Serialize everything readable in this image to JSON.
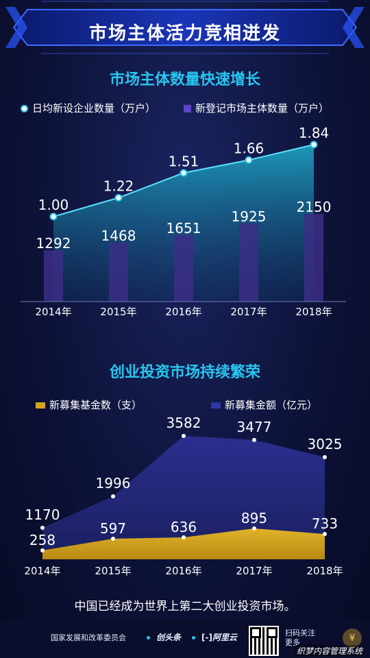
{
  "header": {
    "title": "市场主体活力竞相迸发"
  },
  "chart_data": [
    {
      "type": "bar",
      "title": "市场主体数量快速增长",
      "categories": [
        "2014年",
        "2015年",
        "2016年",
        "2017年",
        "2018年"
      ],
      "series": [
        {
          "name": "日均新设企业数量（万户）",
          "kind": "area",
          "values": [
            1.0,
            1.22,
            1.51,
            1.66,
            1.84
          ],
          "labels": [
            "1.00",
            "1.22",
            "1.51",
            "1.66",
            "1.84"
          ]
        },
        {
          "name": "新登记市场主体数量（万户）",
          "kind": "bar",
          "values": [
            1292,
            1468,
            1651,
            1925,
            2150
          ],
          "labels": [
            "1292",
            "1468",
            "1651",
            "1925",
            "2150"
          ]
        }
      ],
      "colors": {
        "area": "#1d9fbf",
        "bar": "#3b2e86",
        "marker": "#27c6f0"
      }
    },
    {
      "type": "area",
      "title": "创业投资市场持续繁荣",
      "categories": [
        "2014年",
        "2015年",
        "2016年",
        "2017年",
        "2018年"
      ],
      "series": [
        {
          "name": "新募集基金数（支）",
          "values": [
            258,
            597,
            636,
            895,
            733
          ],
          "labels": [
            "258",
            "597",
            "636",
            "895",
            "733"
          ]
        },
        {
          "name": "新募集金额（亿元）",
          "values": [
            1170,
            1996,
            3582,
            3477,
            3025
          ],
          "labels": [
            "1170",
            "1996",
            "3582",
            "3477",
            "3025"
          ]
        }
      ],
      "colors": {
        "funds": "#d4a41f",
        "amount": "#24297a"
      }
    }
  ],
  "caption": "中国已经成为世界上第二大创业投资市场。",
  "footer": {
    "org": "国家发展和改革委员会",
    "logo1": "创头条",
    "logo2": "阿里云",
    "scan_line1": "扫码关注",
    "scan_line2": "更多",
    "badge_icon": "coin-icon",
    "watermark": "织梦内容管理系统"
  }
}
